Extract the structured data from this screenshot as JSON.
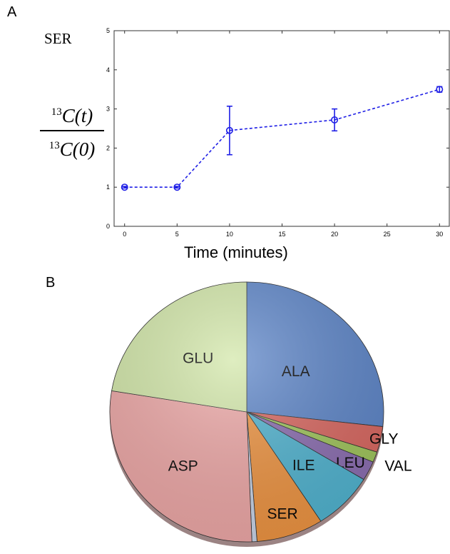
{
  "panels": {
    "a": "A",
    "b": "B"
  },
  "chart_data": [
    {
      "type": "line",
      "title": "SER",
      "xlabel": "Time (minutes)",
      "ylabel": {
        "numerator": "13C(t)",
        "denominator": "13C(0)"
      },
      "x": [
        0,
        5,
        10,
        20,
        30
      ],
      "series": [
        {
          "values": [
            1.0,
            1.0,
            2.45,
            2.72,
            3.5
          ],
          "error": [
            0.02,
            0.02,
            0.62,
            0.28,
            0.07
          ],
          "color": "#1f1fe6",
          "line_style": "dashed",
          "marker": "circle-open"
        }
      ],
      "xticks": [
        0,
        5,
        10,
        15,
        20,
        25,
        30
      ],
      "yticks": [
        0,
        1,
        2,
        3,
        4,
        5
      ],
      "xlim": [
        -1,
        31
      ],
      "ylim": [
        0,
        5
      ],
      "grid": false
    },
    {
      "type": "pie",
      "slices": [
        {
          "label": "ALA",
          "value": 26.8,
          "color": "#5b84c8"
        },
        {
          "label": "GLY",
          "value": 3.2,
          "color": "#d9665f"
        },
        {
          "label": "VAL",
          "value": 1.3,
          "color": "#9fc55a"
        },
        {
          "label": "LEU",
          "value": 2.4,
          "color": "#8a6cb0"
        },
        {
          "label": "ILE",
          "value": 7.2,
          "color": "#4fb3d0"
        },
        {
          "label": "SER",
          "value": 7.9,
          "color": "#ee9340"
        },
        {
          "label": "",
          "value": 0.6,
          "color": "#c8d4e8"
        },
        {
          "label": "ASP",
          "value": 28.2,
          "color": "#eea7a6"
        },
        {
          "label": "GLU",
          "value": 22.4,
          "color": "#d2e7a8"
        }
      ]
    }
  ]
}
